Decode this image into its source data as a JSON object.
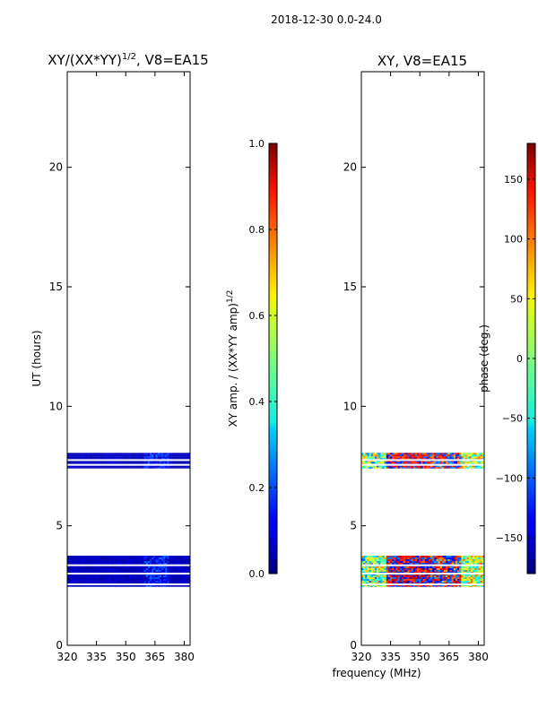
{
  "figure": {
    "suptitle": "2018-12-30 0.0-24.0"
  },
  "chart_data": [
    {
      "type": "heatmap",
      "title": "XY/(XX*YY)^1/2, V8=EA15",
      "title_main": "XY/(XX*YY)",
      "title_exp": "1/2",
      "title_rest": ", V8=EA15",
      "xlabel": "",
      "ylabel": "UT (hours)",
      "xlim": [
        320,
        383
      ],
      "ylim": [
        0,
        24
      ],
      "xticks": [
        320,
        335,
        350,
        365,
        380
      ],
      "yticks": [
        0,
        5,
        10,
        15,
        20
      ],
      "colormap": "jet",
      "colorbar": {
        "label": "XY amp. / (XX*YY amp)^1/2",
        "label_main": "XY amp. / (XX*YY amp)",
        "label_exp": "1/2",
        "range": [
          0.0,
          1.0
        ],
        "ticks": [
          "0.0",
          "0.2",
          "0.4",
          "0.6",
          "0.8",
          "1.0"
        ]
      },
      "data_bands_ut": [
        [
          2.45,
          3.75
        ],
        [
          7.4,
          8.05
        ]
      ],
      "gap_lines_ut": [
        2.55,
        3.0,
        3.35,
        7.55,
        7.75
      ],
      "typical_value": 0.05
    },
    {
      "type": "heatmap",
      "title": "XY, V8=EA15",
      "xlabel": "frequency (MHz)",
      "ylabel": "",
      "xlim": [
        320,
        383
      ],
      "ylim": [
        0,
        24
      ],
      "xticks": [
        320,
        335,
        350,
        365,
        380
      ],
      "yticks": [
        0,
        5,
        10,
        15,
        20
      ],
      "colormap": "jet",
      "colorbar": {
        "label": "phase (deg.)",
        "range": [
          -180,
          180
        ],
        "ticks": [
          "−150",
          "−100",
          "−50",
          "0",
          "50",
          "100",
          "150"
        ]
      },
      "data_bands_ut": [
        [
          2.45,
          3.75
        ],
        [
          7.4,
          8.05
        ]
      ],
      "gap_lines_ut": [
        2.55,
        3.0,
        3.35,
        7.55,
        7.75
      ]
    }
  ]
}
